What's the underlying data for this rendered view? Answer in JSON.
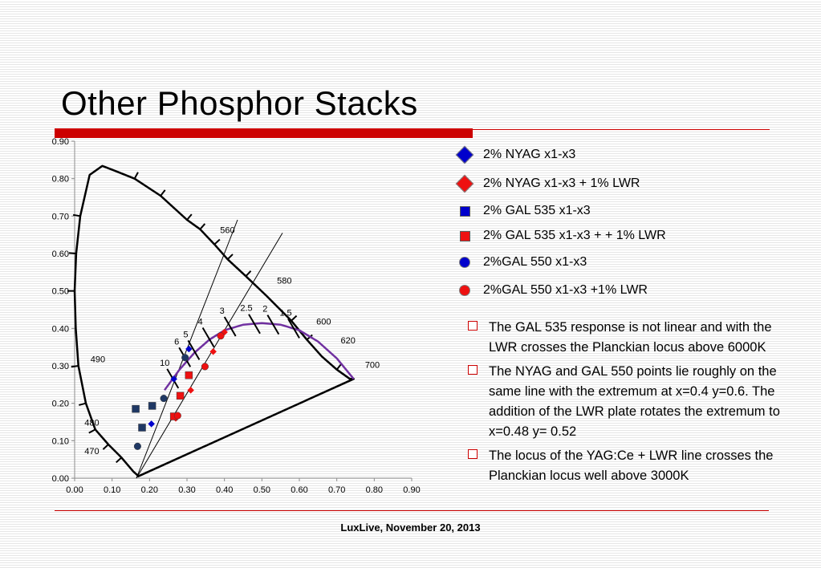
{
  "slide": {
    "title": "Other Phosphor Stacks",
    "footer": "LuxLive, November 20, 2013",
    "bullets": [
      "The GAL 535 response is not linear and with the LWR crosses the Planckian locus above 6000K",
      "The NYAG and GAL 550 points lie roughly on the same line with the extremum at x=0.4 y=0.6. The addition of the LWR plate rotates the extremum to x=0.48 y= 0.52",
      "The locus of the YAG:Ce + LWR line crosses the Planckian locus well above 3000K"
    ]
  },
  "colors": {
    "accent": "#cc0000",
    "blue": "#0000cc",
    "red": "#ee1111",
    "navy": "#1f3864",
    "planck": "#7030a0"
  },
  "chart_data": {
    "type": "scatter",
    "title": "",
    "xlabel": "",
    "ylabel": "",
    "xlim": [
      0,
      0.9
    ],
    "ylim": [
      0,
      0.9
    ],
    "x_ticks": [
      "0.00",
      "0.10",
      "0.20",
      "0.30",
      "0.40",
      "0.50",
      "0.60",
      "0.70",
      "0.80",
      "0.90"
    ],
    "y_ticks": [
      "0.00",
      "0.10",
      "0.20",
      "0.30",
      "0.40",
      "0.50",
      "0.60",
      "0.70",
      "0.80",
      "0.90"
    ],
    "grid": false,
    "legend_position": "right",
    "series": [
      {
        "name": "2% NYAG x1-x3",
        "marker": "diamond",
        "color": "#0000cc",
        "points": [
          [
            0.205,
            0.145
          ],
          [
            0.265,
            0.265
          ],
          [
            0.305,
            0.345
          ]
        ]
      },
      {
        "name": "2% NYAG x1-x3 + 1% LWR",
        "marker": "diamond",
        "color": "#ee1111",
        "points": [
          [
            0.27,
            0.16
          ],
          [
            0.31,
            0.235
          ],
          [
            0.37,
            0.338
          ],
          [
            0.4,
            0.39
          ]
        ]
      },
      {
        "name": "2% GAL 535 x1-x3",
        "marker": "square",
        "color": "#1f3864",
        "points": [
          [
            0.163,
            0.185
          ],
          [
            0.18,
            0.135
          ],
          [
            0.207,
            0.193
          ]
        ]
      },
      {
        "name": "2% GAL 535 x1-x3 + + 1% LWR",
        "marker": "square",
        "color": "#ee1111",
        "points": [
          [
            0.265,
            0.165
          ],
          [
            0.282,
            0.22
          ],
          [
            0.305,
            0.275
          ]
        ]
      },
      {
        "name": "2%GAL 550 x1-x3",
        "marker": "circle",
        "color": "#1f3864",
        "points": [
          [
            0.168,
            0.085
          ],
          [
            0.238,
            0.213
          ],
          [
            0.295,
            0.322
          ]
        ]
      },
      {
        "name": "2%GAL 550 x1-x3 +1% LWR",
        "marker": "circle",
        "color": "#ee1111",
        "points": [
          [
            0.275,
            0.167
          ],
          [
            0.348,
            0.298
          ],
          [
            0.39,
            0.38
          ]
        ]
      }
    ],
    "spectral_locus": {
      "points": [
        [
          0.745,
          0.265
        ],
        [
          0.735,
          0.265
        ],
        [
          0.7,
          0.29
        ],
        [
          0.66,
          0.325
        ],
        [
          0.62,
          0.37
        ],
        [
          0.5785,
          0.4205
        ],
        [
          0.5125,
          0.4866
        ],
        [
          0.4572,
          0.5394
        ],
        [
          0.4084,
          0.5845
        ],
        [
          0.3733,
          0.6245
        ],
        [
          0.335,
          0.665
        ],
        [
          0.3,
          0.69
        ],
        [
          0.2296,
          0.7543
        ],
        [
          0.16,
          0.8
        ],
        [
          0.11,
          0.82
        ],
        [
          0.074,
          0.834
        ],
        [
          0.04,
          0.81
        ],
        [
          0.015,
          0.7
        ],
        [
          0.004,
          0.6
        ],
        [
          0.0,
          0.5
        ],
        [
          0.003,
          0.4
        ],
        [
          0.01,
          0.3
        ],
        [
          0.03,
          0.2
        ],
        [
          0.055,
          0.13
        ],
        [
          0.09,
          0.09
        ],
        [
          0.125,
          0.055
        ],
        [
          0.1566,
          0.0177
        ],
        [
          0.1666,
          0.0089
        ],
        [
          0.17,
          0.005
        ]
      ],
      "labels": [
        {
          "text": "470",
          "x": 0.046,
          "y": 0.064
        },
        {
          "text": "480",
          "x": 0.046,
          "y": 0.14
        },
        {
          "text": "490",
          "x": 0.062,
          "y": 0.31
        },
        {
          "text": "560",
          "x": 0.408,
          "y": 0.655
        },
        {
          "text": "580",
          "x": 0.56,
          "y": 0.52
        },
        {
          "text": "600",
          "x": 0.665,
          "y": 0.41
        },
        {
          "text": "620",
          "x": 0.73,
          "y": 0.36
        },
        {
          "text": "700",
          "x": 0.795,
          "y": 0.295
        }
      ]
    },
    "planckian_locus": [
      [
        0.24,
        0.235
      ],
      [
        0.28,
        0.29
      ],
      [
        0.32,
        0.335
      ],
      [
        0.36,
        0.37
      ],
      [
        0.4,
        0.395
      ],
      [
        0.45,
        0.41
      ],
      [
        0.5,
        0.414
      ],
      [
        0.55,
        0.41
      ],
      [
        0.6,
        0.395
      ],
      [
        0.65,
        0.365
      ],
      [
        0.7,
        0.32
      ],
      [
        0.745,
        0.265
      ]
    ],
    "cct_ticks": [
      {
        "label": "10",
        "x": 0.262,
        "y": 0.266
      },
      {
        "label": "6",
        "x": 0.294,
        "y": 0.323
      },
      {
        "label": "5",
        "x": 0.318,
        "y": 0.342
      },
      {
        "label": "4",
        "x": 0.357,
        "y": 0.376
      },
      {
        "label": "3",
        "x": 0.415,
        "y": 0.405
      },
      {
        "label": "2.5",
        "x": 0.48,
        "y": 0.412
      },
      {
        "label": "2",
        "x": 0.53,
        "y": 0.41
      },
      {
        "label": "1.5",
        "x": 0.585,
        "y": 0.4
      }
    ],
    "reference_lines": [
      [
        [
          0.165,
          0.0
        ],
        [
          0.435,
          0.69
        ]
      ],
      [
        [
          0.165,
          0.0
        ],
        [
          0.555,
          0.655
        ]
      ]
    ]
  }
}
